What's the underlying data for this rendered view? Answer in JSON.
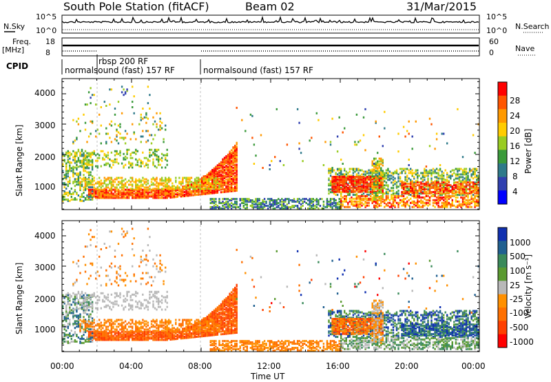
{
  "header": {
    "station": "South Pole Station (fitACF)",
    "beam": "Beam 02",
    "date": "31/Mar/2015"
  },
  "top_panels": {
    "nsky_label": "N.Sky",
    "nsearch_label": "N.Search",
    "noise_ticks": [
      "10^5",
      "10^0"
    ],
    "freq_label_1": "Freq.",
    "freq_label_2": "[MHz]",
    "freq_ticks": [
      "18",
      "8"
    ],
    "nave_label": "Nave",
    "nave_ticks": [
      "60",
      "0"
    ],
    "cpid_label": "CPID",
    "cpid_segments": [
      "normalsound (fast) 157 RF",
      "rbsp 200 RF",
      "normalsound (fast) 157 RF"
    ]
  },
  "colors": {
    "power": [
      "#0000ff",
      "#3040b0",
      "#2e7a8a",
      "#3a9a3a",
      "#99cc22",
      "#ffcc00",
      "#ff9900",
      "#ff5500",
      "#ff0000"
    ],
    "velocity": [
      "#1030b0",
      "#206090",
      "#3a8a5a",
      "#5a9a30",
      "#b8b8b8",
      "#ff9000",
      "#ff7000",
      "#ff4000",
      "#ff0000"
    ]
  },
  "chart_data": [
    {
      "type": "heatmap",
      "ylabel": "Slant Range [km]",
      "y_ticks": [
        "4000",
        "3000",
        "2000",
        "1000"
      ],
      "ylim": [
        180,
        4500
      ],
      "xlim": [
        0,
        24
      ],
      "colorbar_label": "Power [dB]",
      "colorbar_ticks": [
        "28",
        "24",
        "20",
        "16",
        "12",
        "8",
        "4"
      ],
      "colorbar_range": [
        0,
        32
      ]
    },
    {
      "type": "heatmap",
      "xlabel": "Time UT",
      "x_ticks": [
        "00:00",
        "04:00",
        "08:00",
        "12:00",
        "16:00",
        "20:00",
        "00:00"
      ],
      "ylabel": "Slant Range [km]",
      "y_ticks": [
        "4000",
        "3000",
        "2000",
        "1000"
      ],
      "ylim": [
        180,
        4500
      ],
      "xlim": [
        0,
        24
      ],
      "colorbar_label": "Velocity [m s⁻¹]",
      "colorbar_ticks": [
        "1000",
        "500",
        "100",
        "25",
        "-25",
        "-100",
        "-500",
        "-1000"
      ]
    }
  ]
}
